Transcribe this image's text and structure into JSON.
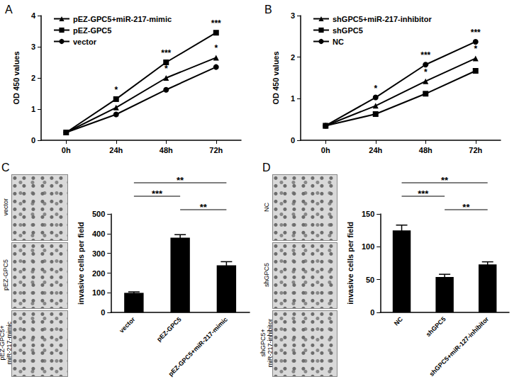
{
  "chart_data": [
    {
      "type": "line",
      "title": "A",
      "y_label": "OD 450 values",
      "categories": [
        "0h",
        "24h",
        "48h",
        "72h"
      ],
      "ylim": [
        0,
        4
      ],
      "yticks": [
        0,
        1,
        2,
        3,
        4
      ],
      "legend": "upper left",
      "series": [
        {
          "name": "pEZ-GPC5+miR-217-mimic",
          "color": "#000000",
          "marker": "triangle",
          "values": [
            0.25,
            1.05,
            2.0,
            2.65
          ],
          "significance": [
            null,
            null,
            "*",
            "*"
          ]
        },
        {
          "name": "pEZ-GPC5",
          "color": "#000000",
          "marker": "square",
          "values": [
            0.25,
            1.32,
            2.5,
            3.45
          ],
          "significance": [
            null,
            "*",
            "***",
            "***"
          ]
        },
        {
          "name": "vector",
          "color": "#000000",
          "marker": "circle",
          "values": [
            0.25,
            0.83,
            1.62,
            2.35
          ],
          "significance": [
            null,
            null,
            null,
            null
          ]
        }
      ]
    },
    {
      "type": "line",
      "title": "B",
      "y_label": "OD 450 values",
      "categories": [
        "0h",
        "24h",
        "48h",
        "72h"
      ],
      "ylim": [
        0,
        3
      ],
      "yticks": [
        0,
        1,
        2,
        3
      ],
      "legend": "upper left",
      "series": [
        {
          "name": "shGPC5+miR-217-inhibitor",
          "color": "#000000",
          "marker": "triangle",
          "values": [
            0.35,
            0.83,
            1.42,
            1.97
          ],
          "significance": [
            null,
            null,
            "*",
            "*"
          ]
        },
        {
          "name": "shGPC5",
          "color": "#000000",
          "marker": "square",
          "values": [
            0.35,
            0.63,
            1.12,
            1.67
          ],
          "significance": [
            null,
            null,
            null,
            null
          ]
        },
        {
          "name": "NC",
          "color": "#000000",
          "marker": "circle",
          "values": [
            0.35,
            1.03,
            1.82,
            2.37
          ],
          "significance": [
            null,
            "*",
            "***",
            "***"
          ]
        }
      ]
    },
    {
      "type": "bar",
      "y_label": "invasive cells per field",
      "color": "#000000",
      "categories": [
        "vector",
        "pEZ-GPC5",
        "pEZ-GPC5+miR-217-mimic"
      ],
      "values": [
        100,
        380,
        240
      ],
      "errors": [
        5,
        15,
        18
      ],
      "ylim": [
        0,
        500
      ],
      "yticks": [
        0,
        100,
        200,
        300,
        400,
        500
      ],
      "comparisons": [
        {
          "groups": [
            "vector",
            "pEZ-GPC5+miR-217-mimic"
          ],
          "label": "**"
        },
        {
          "groups": [
            "vector",
            "pEZ-GPC5"
          ],
          "label": "***"
        },
        {
          "groups": [
            "pEZ-GPC5",
            "pEZ-GPC5+miR-217-mimic"
          ],
          "label": "**"
        }
      ]
    },
    {
      "type": "bar",
      "y_label": "invasive cells per field",
      "color": "#000000",
      "categories": [
        "NC",
        "shGPC5",
        "shGPC5+miR-127-inhibitor"
      ],
      "values": [
        125,
        54,
        73
      ],
      "errors": [
        8,
        4,
        4
      ],
      "ylim": [
        0,
        150
      ],
      "yticks": [
        0,
        50,
        100,
        150
      ],
      "comparisons": [
        {
          "groups": [
            "NC",
            "shGPC5+miR-127-inhibitor"
          ],
          "label": "**"
        },
        {
          "groups": [
            "NC",
            "shGPC5"
          ],
          "label": "***"
        },
        {
          "groups": [
            "shGPC5",
            "shGPC5+miR-127-inhibitor"
          ],
          "label": "**"
        }
      ]
    }
  ],
  "image_strips": [
    {
      "panel": "C",
      "labels": [
        [
          "vector"
        ],
        [
          "pEZ-GPC5"
        ],
        [
          "pEZ-GPC5+",
          "miR-217-mimic"
        ]
      ]
    },
    {
      "panel": "D",
      "labels": [
        [
          "NC"
        ],
        [
          "shGPC5"
        ],
        [
          "shGPC5+",
          "miR-217-inhibitor"
        ]
      ]
    }
  ]
}
